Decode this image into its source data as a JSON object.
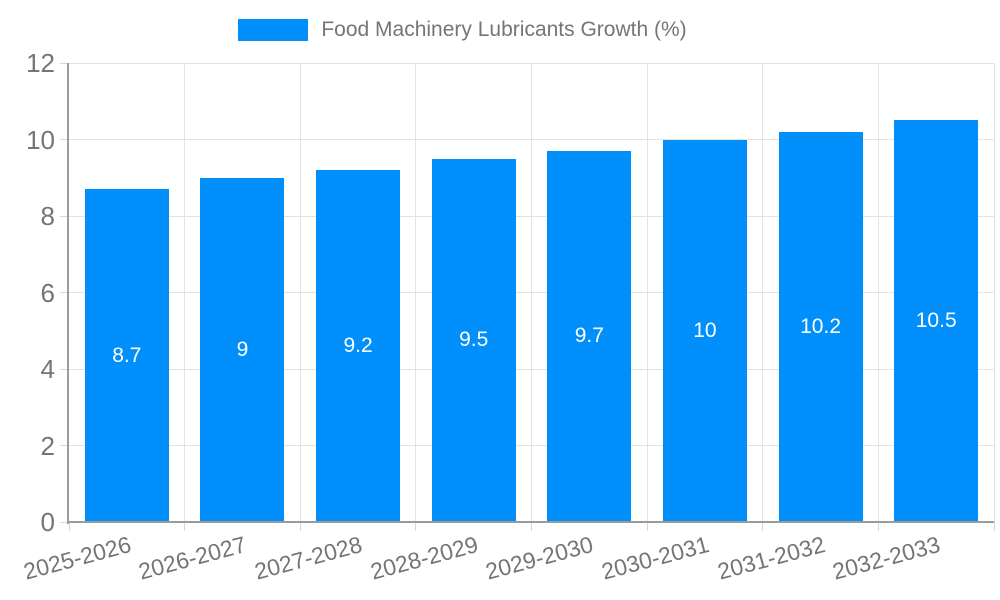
{
  "legend": {
    "label": "Food Machinery Lubricants Growth (%)"
  },
  "chart_data": {
    "type": "bar",
    "title": "Food Machinery Lubricants Growth (%)",
    "categories": [
      "2025-2026",
      "2026-2027",
      "2027-2028",
      "2028-2029",
      "2029-2030",
      "2030-2031",
      "2031-2032",
      "2032-2033"
    ],
    "values": [
      8.7,
      9,
      9.2,
      9.5,
      9.7,
      10,
      10.2,
      10.5
    ],
    "value_labels": [
      "8.7",
      "9",
      "9.2",
      "9.5",
      "9.7",
      "10",
      "10.2",
      "10.5"
    ],
    "ytick_labels": [
      "0",
      "2",
      "4",
      "6",
      "8",
      "10",
      "12"
    ],
    "yticks": [
      0,
      2,
      4,
      6,
      8,
      10,
      12
    ],
    "ylim": [
      0,
      12
    ],
    "xlabel": "",
    "ylabel": "",
    "grid": true,
    "legend_position": "top",
    "colors": {
      "bar": "#008ffb",
      "bar_label_text": "#ffffff",
      "axis_text": "#757575",
      "gridline": "#e3e3e3",
      "tick": "#d6d6d6",
      "axis_line": "#9b9b9b",
      "background": "#ffffff"
    }
  }
}
